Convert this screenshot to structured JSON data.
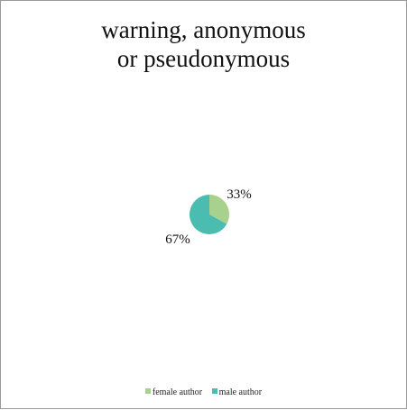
{
  "chart_data": {
    "type": "pie",
    "title_lines": [
      "warning, anonymous",
      "or pseudonymous"
    ],
    "categories": [
      "female author",
      "male author"
    ],
    "values": [
      33,
      67
    ],
    "data_labels": [
      "33%",
      "67%"
    ],
    "colors": [
      "#a9d18e",
      "#4bbcb0"
    ],
    "legend_position": "bottom"
  }
}
